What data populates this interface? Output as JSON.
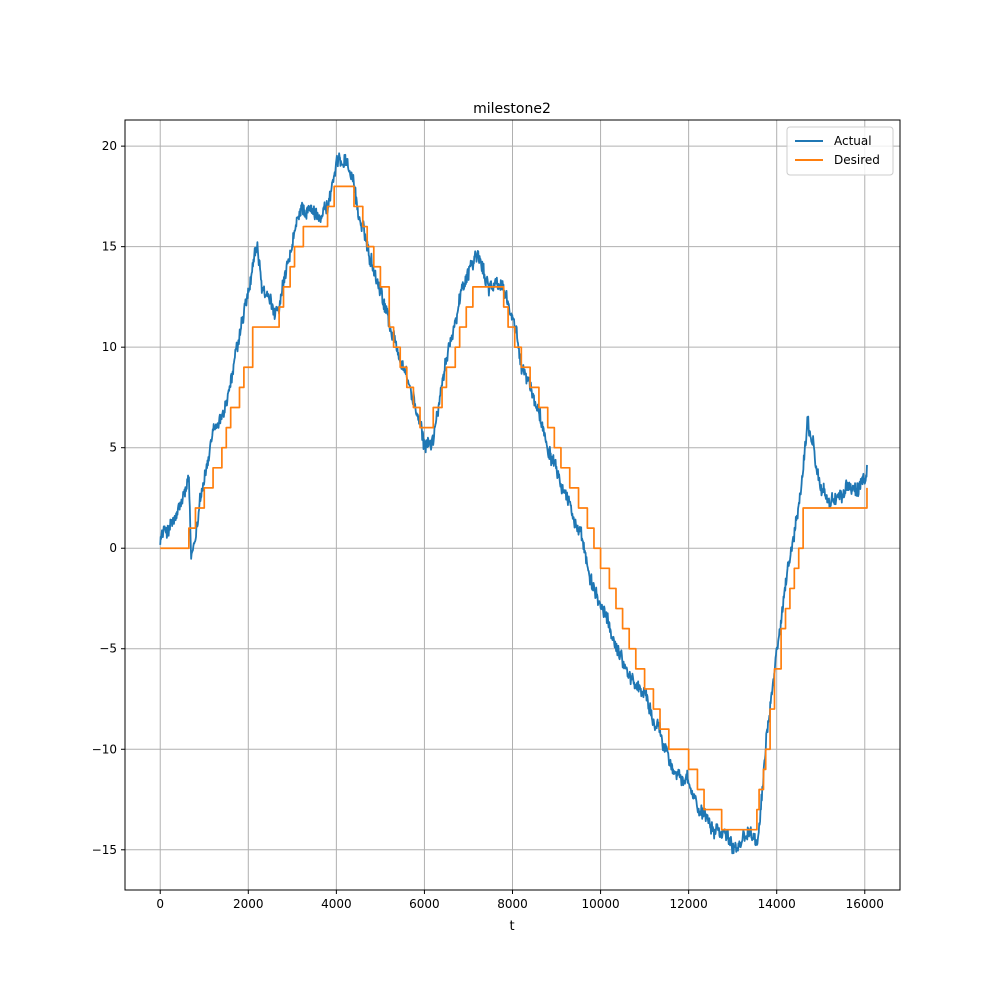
{
  "chart_data": {
    "type": "line",
    "title": "milestone2",
    "xlabel": "t",
    "ylabel": "",
    "xlim": [
      -800,
      16800
    ],
    "ylim": [
      -17,
      21.3
    ],
    "xticks": [
      0,
      2000,
      4000,
      6000,
      8000,
      10000,
      12000,
      14000,
      16000
    ],
    "xtick_labels": [
      "0",
      "2000",
      "4000",
      "6000",
      "8000",
      "10000",
      "12000",
      "14000",
      "16000"
    ],
    "yticks": [
      -15,
      -10,
      -5,
      0,
      5,
      10,
      15,
      20
    ],
    "ytick_labels": [
      "−15",
      "−10",
      "−5",
      "0",
      "5",
      "10",
      "15",
      "20"
    ],
    "grid": true,
    "legend_position": "top-right",
    "series": [
      {
        "name": "Actual",
        "color": "#1f77b4",
        "style": "noisy",
        "x": [
          0,
          200,
          400,
          600,
          650,
          700,
          800,
          900,
          1000,
          1200,
          1400,
          1600,
          1800,
          2000,
          2200,
          2300,
          2500,
          2700,
          2800,
          3000,
          3200,
          3500,
          3800,
          4000,
          4200,
          4400,
          4500,
          4700,
          5000,
          5300,
          5600,
          5800,
          6000,
          6200,
          6400,
          6600,
          6800,
          7000,
          7200,
          7400,
          7600,
          7800,
          8000,
          8200,
          8400,
          8600,
          8800,
          9000,
          9200,
          9400,
          9600,
          9800,
          10000,
          10200,
          10400,
          10600,
          10800,
          11000,
          11200,
          11400,
          11600,
          11800,
          12000,
          12200,
          12400,
          12600,
          12800,
          13000,
          13200,
          13400,
          13600,
          13700,
          13800,
          14000,
          14200,
          14400,
          14500,
          14600,
          14700,
          14800,
          14900,
          15000,
          15200,
          15400,
          15600,
          15800,
          16000,
          16050
        ],
        "y": [
          0.6,
          1.0,
          1.6,
          3.0,
          3.3,
          -0.7,
          0.5,
          2.7,
          3.5,
          5.5,
          6.5,
          8.2,
          10.5,
          12.5,
          15.0,
          13.0,
          12.0,
          11.7,
          13.0,
          15.0,
          17.0,
          16.6,
          17.0,
          19.0,
          19.5,
          18.2,
          16.6,
          15.0,
          13.0,
          10.5,
          8.5,
          7.0,
          5.0,
          5.5,
          8.0,
          10.5,
          12.5,
          14.0,
          14.6,
          13.3,
          13.0,
          13.0,
          11.5,
          9.0,
          8.0,
          6.8,
          5.2,
          4.3,
          3.0,
          1.5,
          0.0,
          -2.0,
          -2.8,
          -4.0,
          -5.0,
          -6.0,
          -6.8,
          -7.2,
          -8.5,
          -9.5,
          -10.5,
          -11.3,
          -12.0,
          -12.8,
          -13.2,
          -13.8,
          -14.0,
          -14.8,
          -14.4,
          -14.0,
          -14.1,
          -11.5,
          -9.0,
          -5.0,
          -2.0,
          0.5,
          2.0,
          4.0,
          6.3,
          5.5,
          4.0,
          3.0,
          2.3,
          2.6,
          2.9,
          3.0,
          3.2,
          3.6
        ]
      },
      {
        "name": "Desired",
        "color": "#ff7f0e",
        "style": "step",
        "x": [
          0,
          650,
          800,
          1000,
          1200,
          1400,
          1500,
          1600,
          1800,
          1900,
          2100,
          2700,
          2800,
          2950,
          3050,
          3250,
          3800,
          3950,
          4400,
          4600,
          4700,
          4850,
          5000,
          5200,
          5300,
          5450,
          5600,
          5750,
          5900,
          6200,
          6400,
          6500,
          6700,
          6800,
          6950,
          7100,
          7300,
          7800,
          7900,
          8050,
          8200,
          8400,
          8600,
          8800,
          8950,
          9100,
          9300,
          9500,
          9700,
          9850,
          10000,
          10200,
          10350,
          10500,
          10650,
          10800,
          11000,
          11200,
          11350,
          11550,
          11700,
          12000,
          12200,
          12350,
          12550,
          12750,
          12950,
          13550,
          13600,
          13700,
          13750,
          13850,
          13950,
          14100,
          14200,
          14300,
          14400,
          14500,
          14600,
          16050
        ],
        "y": [
          0,
          1,
          2,
          3,
          4,
          5,
          6,
          7,
          8,
          9,
          11,
          12,
          13,
          14,
          15,
          16,
          17,
          18,
          17,
          16,
          15,
          14,
          13,
          11,
          10,
          9,
          8,
          7,
          6,
          7,
          8,
          9,
          10,
          11,
          12,
          13,
          13,
          12,
          11,
          10,
          9,
          8,
          7,
          6,
          5,
          4,
          3,
          2,
          1,
          0,
          -1,
          -2,
          -3,
          -4,
          -5,
          -6,
          -7,
          -8,
          -9,
          -10,
          -10,
          -11,
          -12,
          -13,
          -13,
          -14,
          -14,
          -13,
          -12,
          -11,
          -10,
          -8,
          -6,
          -4,
          -3,
          -2,
          -1,
          0,
          2,
          3
        ]
      }
    ]
  }
}
